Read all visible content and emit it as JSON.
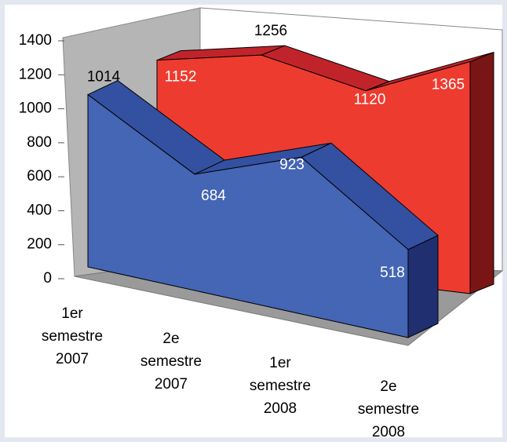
{
  "chart_data": {
    "type": "area3d",
    "categories": [
      "1er semestre 2007",
      "2e semestre 2007",
      "1er semestre 2008",
      "2e semestre 2008"
    ],
    "series": [
      {
        "color": "#ee3b2f",
        "values": [
          1152,
          1256,
          1120,
          1365
        ]
      },
      {
        "color": "#4565b5",
        "values": [
          1014,
          684,
          923,
          518
        ]
      }
    ],
    "ylim": [
      0,
      1400
    ],
    "yticks": [
      0,
      200,
      400,
      600,
      800,
      1000,
      1200,
      1400
    ]
  }
}
